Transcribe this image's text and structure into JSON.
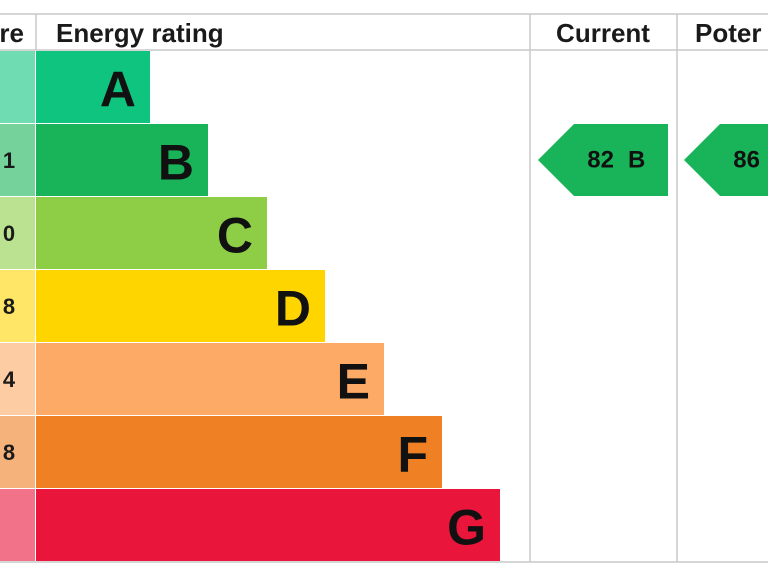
{
  "header": {
    "score": "re",
    "rating": "Energy rating",
    "current": "Current",
    "potential": "Poter"
  },
  "bands": [
    {
      "letter": "A",
      "color": "#0fc47f"
    },
    {
      "letter": "B",
      "color": "#19b459",
      "score": "1"
    },
    {
      "letter": "C",
      "color": "#8dce46",
      "score": "0"
    },
    {
      "letter": "D",
      "color": "#ffd500",
      "score": "8"
    },
    {
      "letter": "E",
      "color": "#fcaa65",
      "score": "4"
    },
    {
      "letter": "F",
      "color": "#ef8023",
      "score": "8"
    },
    {
      "letter": "G",
      "color": "#e9153b"
    }
  ],
  "current": {
    "score": 82,
    "rating": "B",
    "color": "#19b459"
  },
  "potential": {
    "score": 86,
    "color": "#19b459"
  }
}
